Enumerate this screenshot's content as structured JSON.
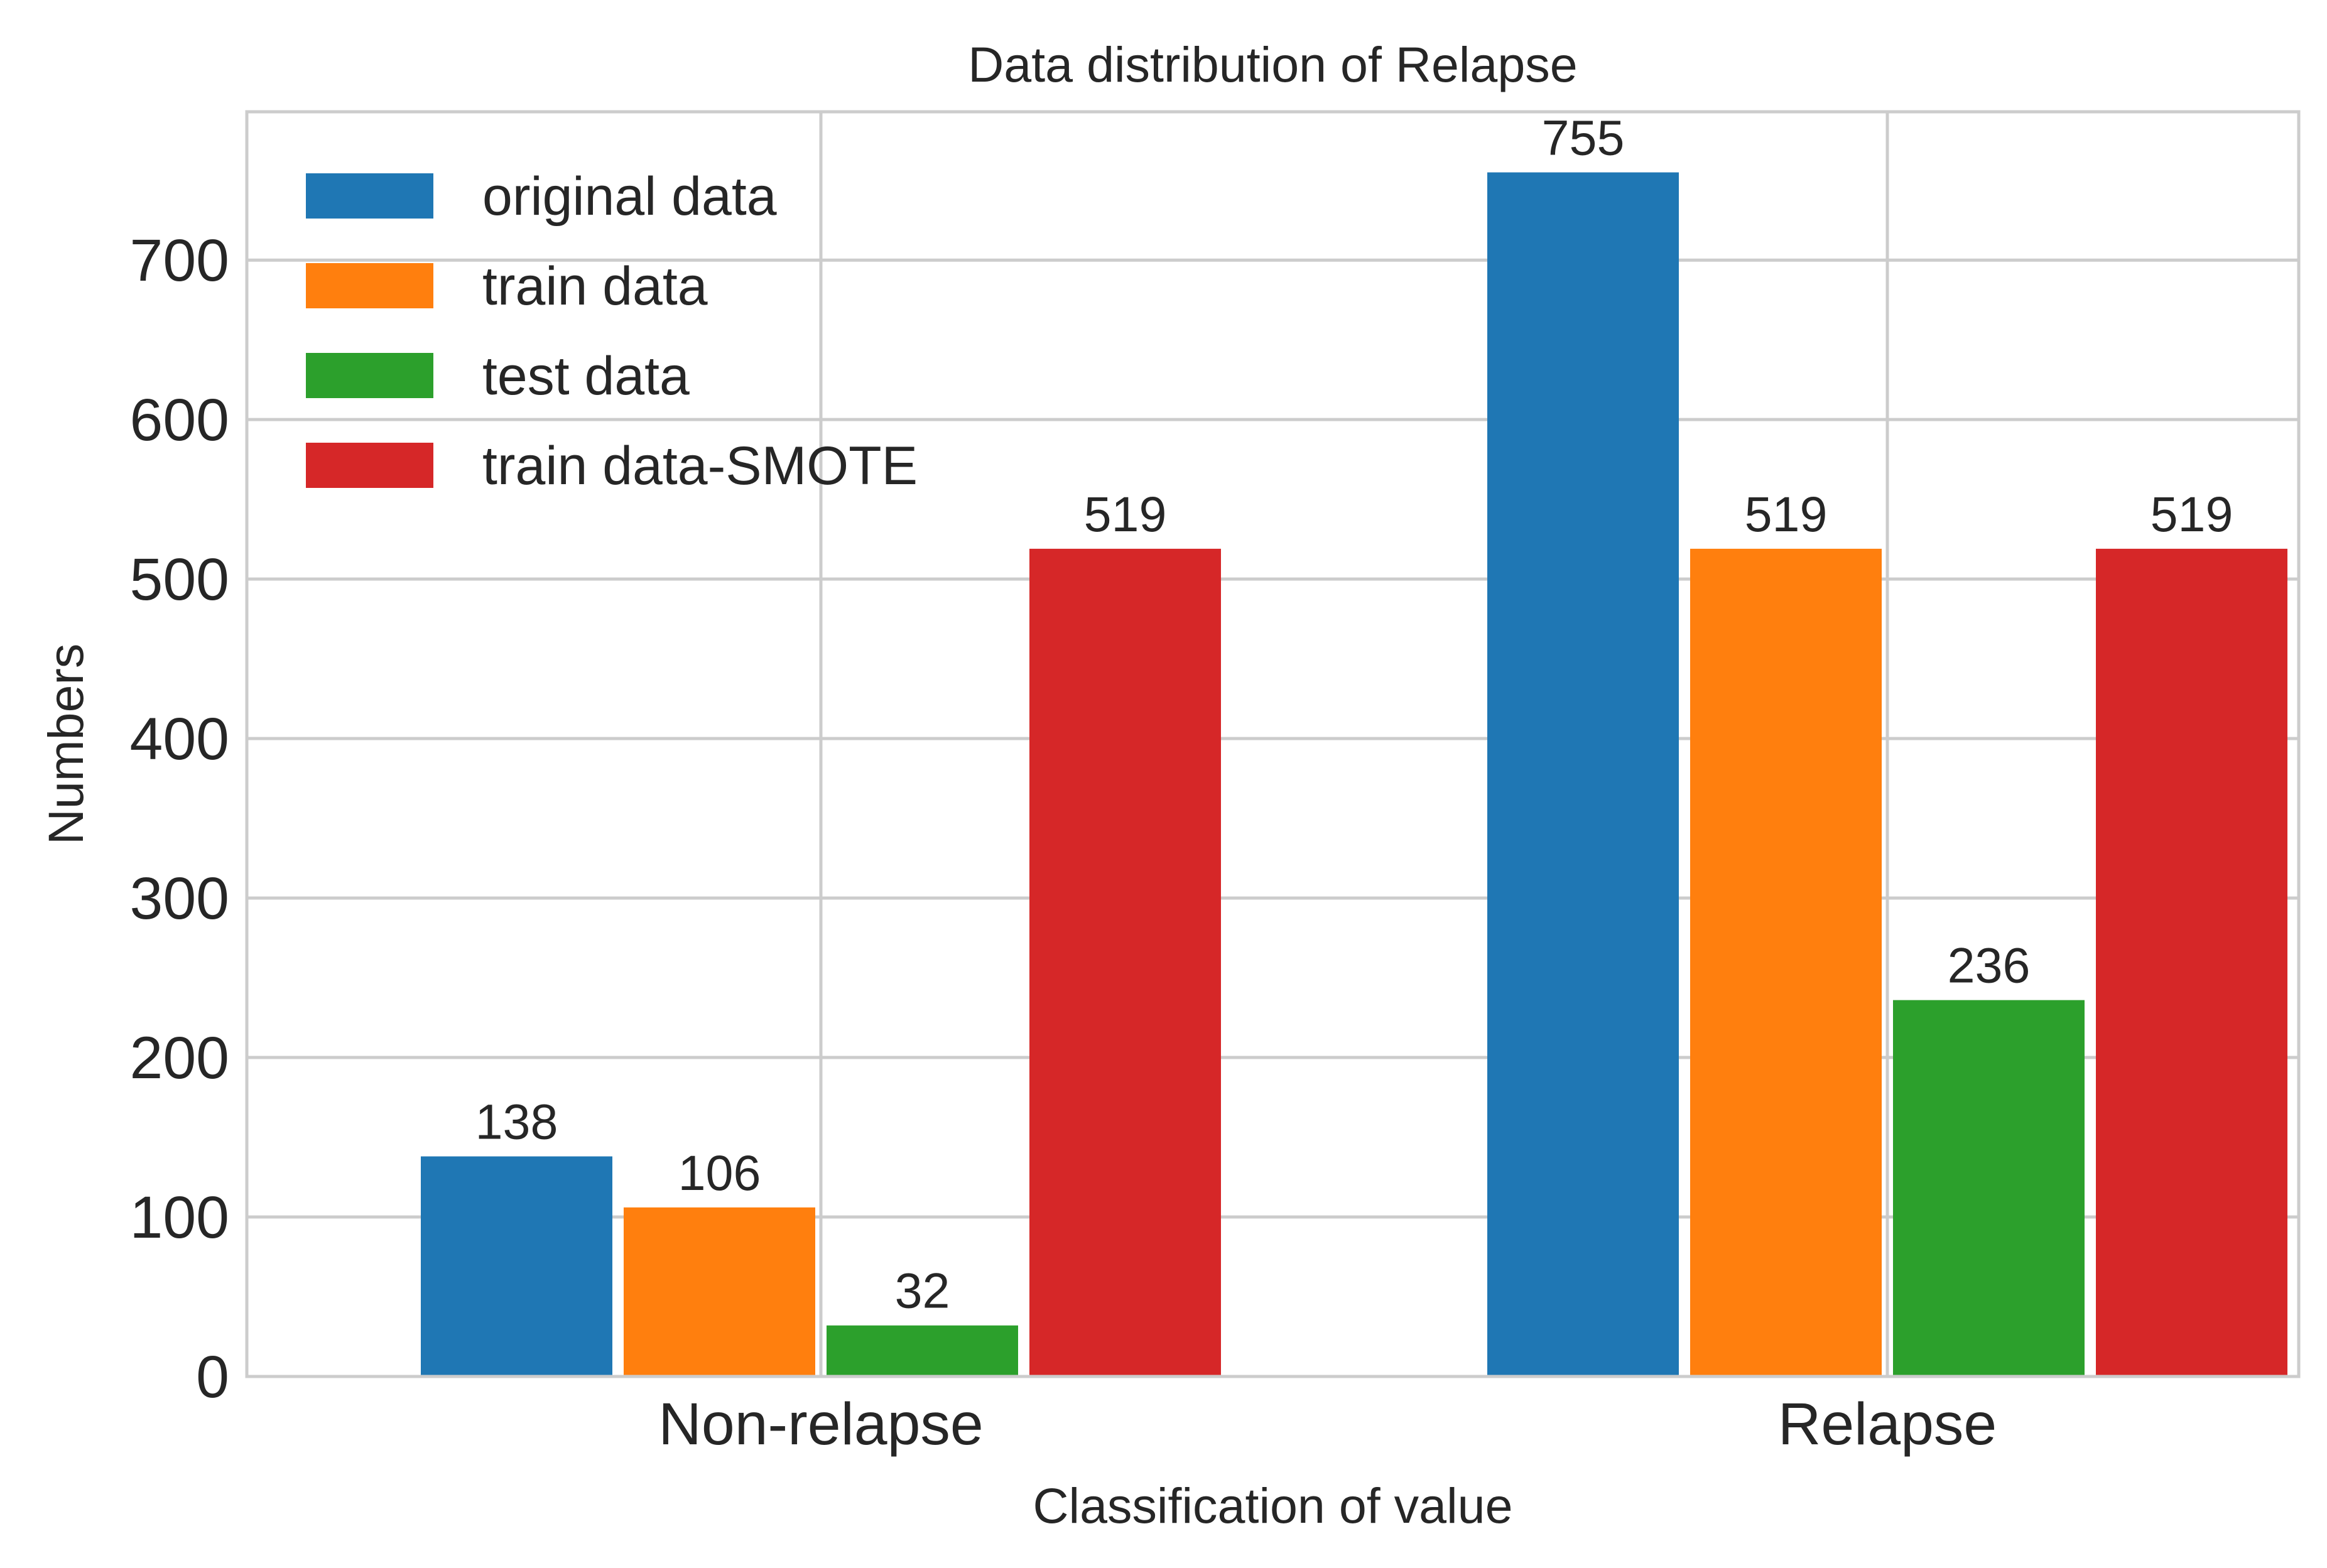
{
  "chart_data": {
    "type": "bar",
    "title": "Data distribution of Relapse",
    "xlabel": "Classification of value",
    "ylabel": "Numbers",
    "categories": [
      "Non-relapse",
      "Relapse"
    ],
    "ylim": [
      0,
      793
    ],
    "yticks": [
      0,
      100,
      200,
      300,
      400,
      500,
      600,
      700
    ],
    "grid": true,
    "legend_position": "top-left",
    "series": [
      {
        "name": "original data",
        "values": [
          138,
          755
        ],
        "color": "#1f77b4"
      },
      {
        "name": "train data",
        "values": [
          106,
          519
        ],
        "color": "#ff7f0e"
      },
      {
        "name": "test data",
        "values": [
          32,
          236
        ],
        "color": "#2ca02c"
      },
      {
        "name": "train data-SMOTE",
        "values": [
          519,
          519
        ],
        "color": "#d62728"
      }
    ]
  }
}
